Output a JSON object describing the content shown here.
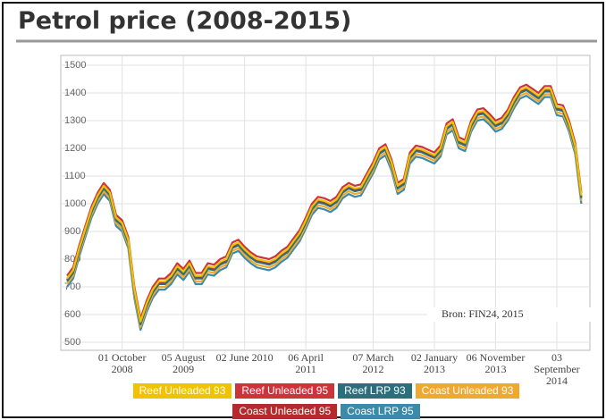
{
  "chart_data": {
    "type": "line",
    "title": "Petrol price (2008-2015)",
    "source": "Bron: FIN24, 2015",
    "categories": [
      null,
      null,
      null,
      null,
      null,
      null,
      null,
      null,
      null,
      "01 October 2008",
      null,
      null,
      null,
      null,
      null,
      null,
      null,
      null,
      null,
      "05 August 2009",
      null,
      null,
      null,
      null,
      null,
      null,
      null,
      null,
      null,
      "02 June 2010",
      null,
      null,
      null,
      null,
      null,
      null,
      null,
      null,
      null,
      "06 April 2011",
      null,
      null,
      null,
      null,
      null,
      null,
      null,
      null,
      null,
      null,
      "07 March 2012",
      null,
      null,
      null,
      null,
      null,
      null,
      null,
      null,
      null,
      "02 January 2013",
      null,
      null,
      null,
      null,
      null,
      null,
      null,
      null,
      null,
      "06 November 2013",
      null,
      null,
      null,
      null,
      null,
      null,
      null,
      null,
      null,
      "03 September 2014",
      null,
      null,
      null,
      null
    ],
    "ylim": [
      500,
      1500
    ],
    "yticks": [
      500,
      600,
      700,
      800,
      900,
      1000,
      1100,
      1200,
      1300,
      1400,
      1500
    ],
    "grid": true,
    "series": [
      {
        "name": "Reef Unleaded 93",
        "color": "#f2c200",
        "values": [
          730,
          760,
          840,
          910,
          980,
          1030,
          1065,
          1040,
          950,
          930,
          870,
          690,
          575,
          640,
          690,
          720,
          720,
          740,
          775,
          755,
          785,
          740,
          740,
          775,
          770,
          790,
          800,
          850,
          860,
          835,
          815,
          800,
          795,
          790,
          800,
          820,
          835,
          865,
          895,
          940,
          990,
          1015,
          1010,
          1000,
          1015,
          1050,
          1065,
          1055,
          1060,
          1100,
          1140,
          1190,
          1205,
          1150,
          1065,
          1080,
          1175,
          1200,
          1195,
          1185,
          1175,
          1200,
          1280,
          1295,
          1230,
          1220,
          1290,
          1330,
          1335,
          1315,
          1290,
          1300,
          1330,
          1375,
          1410,
          1420,
          1405,
          1390,
          1415,
          1415,
          1350,
          1345,
          1290,
          1210,
          1030
        ]
      },
      {
        "name": "Reef Unleaded 95",
        "color": "#cc333b",
        "values": [
          740,
          770,
          850,
          920,
          990,
          1040,
          1075,
          1050,
          960,
          940,
          880,
          700,
          585,
          650,
          700,
          730,
          730,
          750,
          785,
          765,
          795,
          750,
          750,
          785,
          780,
          800,
          810,
          860,
          870,
          845,
          825,
          810,
          805,
          800,
          810,
          830,
          845,
          875,
          905,
          950,
          1000,
          1025,
          1020,
          1010,
          1025,
          1060,
          1075,
          1065,
          1070,
          1110,
          1150,
          1200,
          1215,
          1160,
          1075,
          1090,
          1185,
          1210,
          1205,
          1195,
          1185,
          1210,
          1290,
          1305,
          1240,
          1230,
          1300,
          1340,
          1345,
          1325,
          1300,
          1310,
          1340,
          1385,
          1420,
          1430,
          1415,
          1400,
          1425,
          1425,
          1360,
          1355,
          1300,
          1220,
          1040
        ]
      },
      {
        "name": "Reef LRP 93",
        "color": "#2b6f7d",
        "values": [
          720,
          750,
          830,
          900,
          970,
          1020,
          1055,
          1030,
          940,
          920,
          860,
          680,
          565,
          630,
          680,
          710,
          710,
          730,
          765,
          745,
          775,
          730,
          730,
          765,
          760,
          780,
          790,
          840,
          850,
          825,
          805,
          790,
          785,
          780,
          790,
          810,
          825,
          855,
          885,
          930,
          980,
          1005,
          1000,
          990,
          1005,
          1040,
          1055,
          1045,
          1050,
          1090,
          1130,
          1180,
          1195,
          1140,
          1055,
          1070,
          1165,
          1190,
          1185,
          1175,
          1165,
          1190,
          1270,
          1285,
          1220,
          1210,
          1280,
          1320,
          1325,
          1305,
          1280,
          1290,
          1320,
          1365,
          1400,
          1410,
          1395,
          1380,
          1405,
          1405,
          1340,
          1335,
          1280,
          1200,
          1020
        ]
      },
      {
        "name": "Coast Unleaded 93",
        "color": "#f0a830",
        "values": [
          710,
          740,
          820,
          890,
          960,
          1010,
          1045,
          1020,
          930,
          910,
          850,
          670,
          555,
          620,
          670,
          700,
          700,
          720,
          755,
          735,
          765,
          720,
          720,
          755,
          750,
          770,
          780,
          830,
          840,
          815,
          795,
          780,
          775,
          770,
          780,
          800,
          815,
          845,
          875,
          920,
          970,
          995,
          990,
          980,
          995,
          1030,
          1045,
          1035,
          1040,
          1080,
          1120,
          1170,
          1185,
          1130,
          1045,
          1060,
          1155,
          1180,
          1175,
          1165,
          1155,
          1180,
          1260,
          1275,
          1210,
          1200,
          1270,
          1310,
          1315,
          1295,
          1270,
          1280,
          1310,
          1355,
          1390,
          1400,
          1385,
          1370,
          1395,
          1395,
          1330,
          1325,
          1270,
          1190,
          1010
        ]
      },
      {
        "name": "Coast Unleaded 95",
        "color": "#b52a2e",
        "values": [
          725,
          755,
          835,
          905,
          975,
          1025,
          1060,
          1035,
          945,
          925,
          865,
          685,
          570,
          635,
          685,
          715,
          715,
          735,
          770,
          750,
          780,
          735,
          735,
          770,
          765,
          785,
          795,
          845,
          855,
          830,
          810,
          795,
          790,
          785,
          795,
          815,
          830,
          860,
          890,
          935,
          985,
          1010,
          1005,
          995,
          1010,
          1045,
          1060,
          1050,
          1055,
          1095,
          1135,
          1185,
          1200,
          1145,
          1060,
          1075,
          1170,
          1195,
          1190,
          1180,
          1170,
          1195,
          1275,
          1290,
          1225,
          1215,
          1285,
          1325,
          1330,
          1310,
          1285,
          1295,
          1325,
          1370,
          1405,
          1415,
          1400,
          1385,
          1410,
          1410,
          1345,
          1340,
          1285,
          1205,
          1025
        ]
      },
      {
        "name": "Coast LRP 95",
        "color": "#3a8aa8",
        "values": [
          700,
          730,
          810,
          880,
          950,
          1000,
          1035,
          1010,
          920,
          900,
          840,
          660,
          545,
          610,
          660,
          690,
          690,
          710,
          745,
          725,
          755,
          710,
          710,
          745,
          740,
          760,
          770,
          820,
          830,
          805,
          785,
          770,
          765,
          760,
          770,
          790,
          805,
          835,
          865,
          910,
          960,
          985,
          980,
          970,
          985,
          1020,
          1035,
          1025,
          1030,
          1070,
          1110,
          1160,
          1175,
          1120,
          1035,
          1050,
          1145,
          1170,
          1165,
          1155,
          1145,
          1170,
          1250,
          1265,
          1200,
          1190,
          1260,
          1300,
          1305,
          1285,
          1260,
          1270,
          1300,
          1345,
          1380,
          1390,
          1375,
          1360,
          1385,
          1385,
          1320,
          1315,
          1260,
          1180,
          1000
        ]
      }
    ]
  }
}
